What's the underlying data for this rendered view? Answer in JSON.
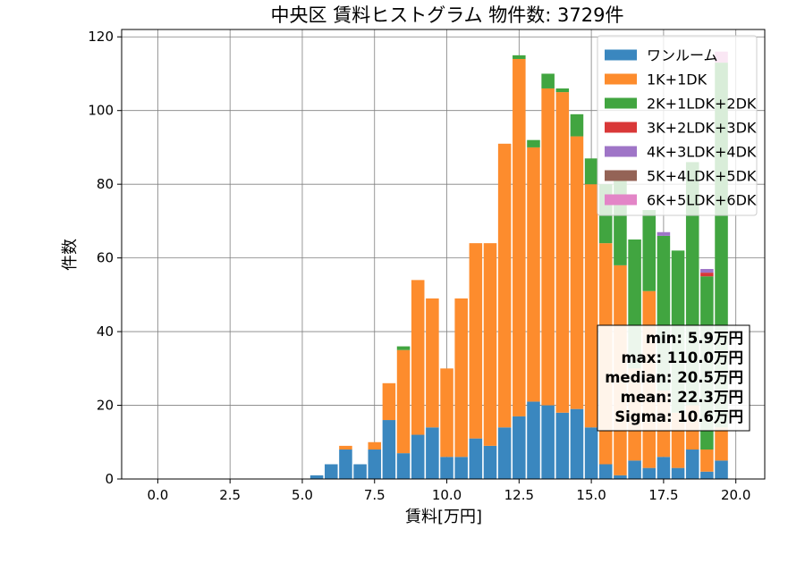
{
  "chart_data": {
    "type": "bar",
    "stacked": true,
    "title": "中央区 賃料ヒストグラム 物件数: 3729件",
    "xlabel": "賃料[万円]",
    "ylabel": "件数",
    "xlim": [
      -1.25,
      21.0
    ],
    "ylim": [
      0,
      122
    ],
    "xticks": [
      "0.0",
      "2.5",
      "5.0",
      "7.5",
      "10.0",
      "12.5",
      "15.0",
      "17.5",
      "20.0"
    ],
    "xtick_values": [
      0,
      2.5,
      5,
      7.5,
      10,
      12.5,
      15,
      17.5,
      20
    ],
    "yticks": [
      "0",
      "20",
      "40",
      "60",
      "80",
      "100",
      "120"
    ],
    "ytick_values": [
      0,
      20,
      40,
      60,
      80,
      100,
      120
    ],
    "grid": true,
    "legend_position": "top-right",
    "bin_width": 0.5,
    "x": [
      5.5,
      6.0,
      6.5,
      7.0,
      7.5,
      8.0,
      8.5,
      9.0,
      9.5,
      10.0,
      10.5,
      11.0,
      11.5,
      12.0,
      12.5,
      13.0,
      13.5,
      14.0,
      14.5,
      15.0,
      15.5,
      16.0,
      16.5,
      17.0,
      17.5,
      18.0,
      18.5,
      19.0,
      19.5
    ],
    "series": [
      {
        "name": "ワンルーム",
        "color": "#3a87bf",
        "values": [
          1,
          4,
          8,
          4,
          8,
          16,
          7,
          12,
          14,
          6,
          6,
          11,
          9,
          14,
          17,
          21,
          20,
          18,
          19,
          14,
          4,
          1,
          5,
          3,
          6,
          3,
          8,
          2,
          5
        ]
      },
      {
        "name": "1K+1DK",
        "color": "#fd8c2d",
        "values": [
          0,
          0,
          1,
          0,
          2,
          10,
          28,
          42,
          35,
          24,
          43,
          53,
          55,
          77,
          97,
          69,
          86,
          87,
          74,
          66,
          60,
          57,
          25,
          48,
          18,
          15,
          12,
          6,
          9
        ]
      },
      {
        "name": "2K+1LDK+2DK",
        "color": "#41a540",
        "values": [
          0,
          0,
          0,
          0,
          0,
          0,
          1,
          0,
          0,
          0,
          0,
          0,
          0,
          0,
          1,
          2,
          4,
          1,
          6,
          7,
          16,
          25,
          35,
          22,
          42,
          44,
          66,
          47,
          99
        ]
      },
      {
        "name": "3K+2LDK+3DK",
        "color": "#d93838",
        "values": [
          0,
          0,
          0,
          0,
          0,
          0,
          0,
          0,
          0,
          0,
          0,
          0,
          0,
          0,
          0,
          0,
          0,
          0,
          0,
          0,
          0,
          0,
          0,
          0,
          0,
          0,
          0,
          1,
          0
        ]
      },
      {
        "name": "4K+3LDK+4DK",
        "color": "#9f75c7",
        "values": [
          0,
          0,
          0,
          0,
          0,
          0,
          0,
          0,
          0,
          0,
          0,
          0,
          0,
          0,
          0,
          0,
          0,
          0,
          0,
          0,
          0,
          0,
          0,
          0,
          1,
          0,
          0,
          1,
          0
        ]
      },
      {
        "name": "5K+4LDK+5DK",
        "color": "#946356",
        "values": [
          0,
          0,
          0,
          0,
          0,
          0,
          0,
          0,
          0,
          0,
          0,
          0,
          0,
          0,
          0,
          0,
          0,
          0,
          0,
          0,
          0,
          0,
          0,
          0,
          0,
          0,
          0,
          0,
          0
        ]
      },
      {
        "name": "6K+5LDK+6DK",
        "color": "#e385c7",
        "values": [
          0,
          0,
          0,
          0,
          0,
          0,
          0,
          0,
          0,
          0,
          0,
          0,
          0,
          0,
          0,
          0,
          0,
          0,
          0,
          0,
          0,
          0,
          0,
          0,
          0,
          0,
          0,
          0,
          3
        ]
      }
    ],
    "stats_box": [
      "min: 5.9万円",
      "max: 110.0万円",
      "median: 20.5万円",
      "mean: 22.3万円",
      "Sigma: 10.6万円"
    ]
  }
}
